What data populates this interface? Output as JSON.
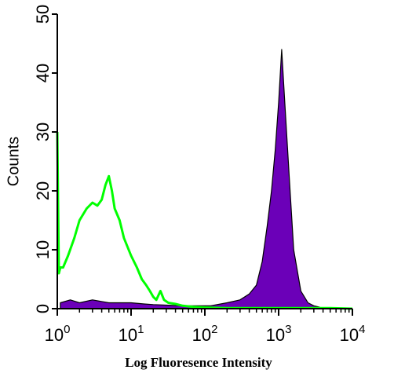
{
  "chart_data": {
    "type": "area",
    "title": "",
    "xlabel": "Log Fluoresence Intensity",
    "ylabel": "Counts",
    "x_scale": "log",
    "xlim": [
      1,
      10000
    ],
    "ylim": [
      0,
      50
    ],
    "x_ticks": [
      {
        "base": "10",
        "exp": "0"
      },
      {
        "base": "10",
        "exp": "1"
      },
      {
        "base": "10",
        "exp": "2"
      },
      {
        "base": "10",
        "exp": "3"
      },
      {
        "base": "10",
        "exp": "4"
      }
    ],
    "y_ticks": [
      "0",
      "10",
      "20",
      "30",
      "40",
      "50"
    ],
    "grid": false,
    "legend": "none",
    "series": [
      {
        "style": "filled",
        "color": "#6b00b8",
        "edge_color": "#000000",
        "x": [
          1.1,
          1.5,
          2,
          3,
          5,
          7,
          10,
          15,
          20,
          30,
          50,
          80,
          120,
          200,
          300,
          400,
          500,
          600,
          700,
          800,
          900,
          1000,
          1100,
          1200,
          1400,
          1600,
          2000,
          2500,
          3000,
          3500,
          4000
        ],
        "y": [
          1,
          1.5,
          1,
          1.5,
          1,
          1,
          1,
          0.8,
          0.7,
          0.6,
          0.5,
          0.5,
          0.5,
          1,
          1.5,
          2.5,
          4,
          8,
          14,
          20,
          27,
          35,
          44,
          36,
          22,
          10,
          3,
          1,
          0.5,
          0.3,
          0
        ]
      },
      {
        "style": "line",
        "color": "#00ff00",
        "x": [
          1,
          1.05,
          1.1,
          1.2,
          1.4,
          1.7,
          2,
          2.5,
          3,
          3.5,
          4,
          4.5,
          5,
          5.5,
          6,
          7,
          8,
          10,
          12,
          14,
          16,
          18,
          20,
          22,
          25,
          28,
          32,
          40,
          50,
          70,
          100,
          200,
          500,
          1000,
          2000,
          5000,
          10000
        ],
        "y": [
          30,
          6,
          7,
          7,
          9,
          12,
          15,
          17,
          18,
          17.5,
          18.5,
          21,
          22.5,
          20,
          17,
          15,
          12,
          9,
          7,
          5,
          4,
          3,
          2,
          1.5,
          3,
          1.5,
          1,
          0.8,
          0.5,
          0.3,
          0.2,
          0.1,
          0.1,
          0.1,
          0.1,
          0.1,
          0
        ]
      }
    ]
  }
}
